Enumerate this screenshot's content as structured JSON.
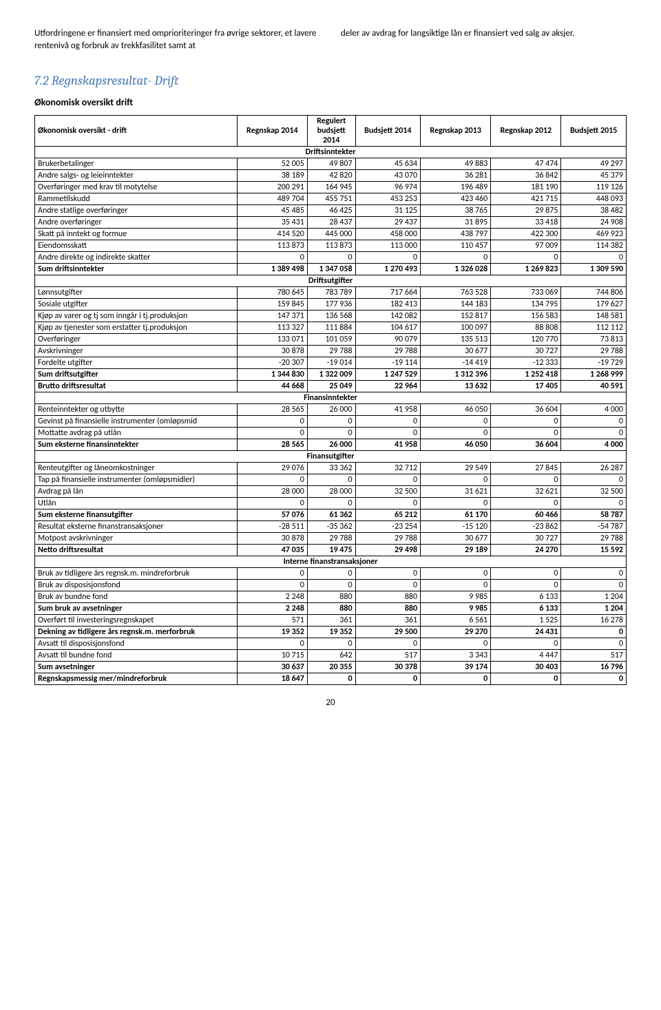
{
  "intro": {
    "left": "Utfordringene er finansiert med omprioriteringer fra øvrige sektorer, et lavere rentenivå og forbruk av trekkfasilitet samt at",
    "right": "deler av avdrag for langsiktige lån er finansiert ved salg av aksjer."
  },
  "section_title": "7.2 Regnskapsresultat- Drift",
  "subtitle": "Økonomisk oversikt drift",
  "page_number": "20",
  "headers": [
    "Økonomisk oversikt - drift",
    "Regnskap 2014",
    "Regulert budsjett 2014",
    "Budsjett 2014",
    "Regnskap 2013",
    "Regnskap 2012",
    "Budsjett 2015"
  ],
  "col_label": "Økonomisk oversikt - drift",
  "col_1": "Regnskap 2014",
  "col_2_a": "Regulert",
  "col_2_b": "budsjett",
  "col_2_c": "2014",
  "col_3": "Budsjett 2014",
  "col_4": "Regnskap 2013",
  "col_5": "Regnskap 2012",
  "col_6": "Budsjett 2015",
  "rows": [
    {
      "type": "section",
      "label": "Driftsinntekter"
    },
    {
      "type": "data",
      "label": "Brukerbetalinger",
      "v": [
        "52 005",
        "49 807",
        "45 634",
        "49 883",
        "47 474",
        "49 297"
      ]
    },
    {
      "type": "data",
      "label": "Andre salgs- og leieinntekter",
      "v": [
        "38 189",
        "42 820",
        "43 070",
        "36 281",
        "36 842",
        "45 379"
      ]
    },
    {
      "type": "data",
      "label": "Overføringer med krav til motytelse",
      "v": [
        "200 291",
        "164 945",
        "96 974",
        "196 489",
        "181 190",
        "119 126"
      ]
    },
    {
      "type": "data",
      "label": "Rammetilskudd",
      "v": [
        "489 704",
        "455 751",
        "453 253",
        "423 460",
        "421 715",
        "448 093"
      ]
    },
    {
      "type": "data",
      "label": "Andre statlige overføringer",
      "v": [
        "45 485",
        "46 425",
        "31 125",
        "38 765",
        "29 875",
        "38 482"
      ]
    },
    {
      "type": "data",
      "label": "Andre overføringer",
      "v": [
        "35 431",
        "28 437",
        "29 437",
        "31 895",
        "33 418",
        "24 908"
      ]
    },
    {
      "type": "data",
      "label": "Skatt på inntekt og formue",
      "v": [
        "414 520",
        "445 000",
        "458 000",
        "438 797",
        "422 300",
        "469 923"
      ]
    },
    {
      "type": "data",
      "label": "Eiendomsskatt",
      "v": [
        "113 873",
        "113 873",
        "113 000",
        "110 457",
        "97 009",
        "114 382"
      ]
    },
    {
      "type": "data",
      "label": "Andre direkte og indirekte skatter",
      "v": [
        "0",
        "0",
        "0",
        "0",
        "0",
        "0"
      ]
    },
    {
      "type": "bold",
      "label": "Sum driftsinntekter",
      "v": [
        "1 389 498",
        "1 347 058",
        "1 270 493",
        "1 326 028",
        "1 269 823",
        "1 309 590"
      ]
    },
    {
      "type": "section",
      "label": "Driftsutgifter"
    },
    {
      "type": "data",
      "label": "Lønnsutgifter",
      "v": [
        "780 645",
        "783 789",
        "717 664",
        "763 528",
        "733 069",
        "744 806"
      ]
    },
    {
      "type": "data",
      "label": "Sosiale utgifter",
      "v": [
        "159 845",
        "177 936",
        "182 413",
        "144 183",
        "134 795",
        "179 627"
      ]
    },
    {
      "type": "data",
      "label": "Kjøp av varer og tj som inngår i tj.produksjon",
      "v": [
        "147 371",
        "136 568",
        "142 082",
        "152 817",
        "156 583",
        "148 581"
      ]
    },
    {
      "type": "data",
      "label": "Kjøp av tjenester som erstatter tj.produksjon",
      "v": [
        "113 327",
        "111 884",
        "104 617",
        "100 097",
        "88 808",
        "112 112"
      ]
    },
    {
      "type": "data",
      "label": "Overføringer",
      "v": [
        "133 071",
        "101 059",
        "90 079",
        "135 513",
        "120 770",
        "73 813"
      ]
    },
    {
      "type": "data",
      "label": "Avskrivninger",
      "v": [
        "30 878",
        "29 788",
        "29 788",
        "30 677",
        "30 727",
        "29 788"
      ]
    },
    {
      "type": "data",
      "label": "Fordelte utgifter",
      "v": [
        "-20 307",
        "-19 014",
        "-19 114",
        "-14 419",
        "-12 333",
        "-19 729"
      ]
    },
    {
      "type": "bold",
      "label": "Sum driftsutgifter",
      "v": [
        "1 344 830",
        "1 322 009",
        "1 247 529",
        "1 312 396",
        "1 252 418",
        "1 268 999"
      ]
    },
    {
      "type": "bold",
      "label": "Brutto driftsresultat",
      "v": [
        "44 668",
        "25 049",
        "22 964",
        "13 632",
        "17 405",
        "40 591"
      ]
    },
    {
      "type": "section",
      "label": "Finansinntekter"
    },
    {
      "type": "data",
      "label": "Renteinntekter og utbytte",
      "v": [
        "28 565",
        "26 000",
        "41 958",
        "46 050",
        "36 604",
        "4 000"
      ]
    },
    {
      "type": "data",
      "label": "Gevinst på finansielle instrumenter (omløpsmid",
      "v": [
        "0",
        "0",
        "0",
        "0",
        "0",
        "0"
      ]
    },
    {
      "type": "data",
      "label": "Mottatte avdrag på utlån",
      "v": [
        "0",
        "0",
        "0",
        "0",
        "0",
        "0"
      ]
    },
    {
      "type": "bold",
      "label": "Sum eksterne finansinntekter",
      "v": [
        "28 565",
        "26 000",
        "41 958",
        "46 050",
        "36 604",
        "4 000"
      ]
    },
    {
      "type": "section",
      "label": "Finansutgifter"
    },
    {
      "type": "data",
      "label": "Renteutgifter og låneomkostninger",
      "v": [
        "29 076",
        "33 362",
        "32 712",
        "29 549",
        "27 845",
        "26 287"
      ]
    },
    {
      "type": "data",
      "label": "Tap på finansielle instrumenter (omløpsmidler)",
      "v": [
        "0",
        "0",
        "0",
        "0",
        "0",
        "0"
      ]
    },
    {
      "type": "data",
      "label": "Avdrag på lån",
      "v": [
        "28 000",
        "28 000",
        "32 500",
        "31 621",
        "32 621",
        "32 500"
      ]
    },
    {
      "type": "data",
      "label": "Utlån",
      "v": [
        "0",
        "0",
        "0",
        "0",
        "0",
        "0"
      ]
    },
    {
      "type": "bold",
      "label": "Sum eksterne finansutgifter",
      "v": [
        "57 076",
        "61 362",
        "65 212",
        "61 170",
        "60 466",
        "58 787"
      ]
    },
    {
      "type": "data",
      "label": "Resultat eksterne finanstransaksjoner",
      "v": [
        "-28 511",
        "-35 362",
        "-23 254",
        "-15 120",
        "-23 862",
        "-54 787"
      ]
    },
    {
      "type": "data",
      "label": "Motpost avskrivninger",
      "v": [
        "30 878",
        "29 788",
        "29 788",
        "30 677",
        "30 727",
        "29 788"
      ]
    },
    {
      "type": "bold",
      "label": "Netto driftsresultat",
      "v": [
        "47 035",
        "19 475",
        "29 498",
        "29 189",
        "24 270",
        "15 592"
      ]
    },
    {
      "type": "section",
      "label": "Interne finanstransaksjoner"
    },
    {
      "type": "data",
      "label": "Bruk av tidligere års regnsk.m. mindreforbruk",
      "v": [
        "0",
        "0",
        "0",
        "0",
        "0",
        "0"
      ]
    },
    {
      "type": "data",
      "label": "Bruk av disposisjonsfond",
      "v": [
        "0",
        "0",
        "0",
        "0",
        "0",
        "0"
      ]
    },
    {
      "type": "data",
      "label": "Bruk av bundne fond",
      "v": [
        "2 248",
        "880",
        "880",
        "9 985",
        "6 133",
        "1 204"
      ]
    },
    {
      "type": "bold",
      "label": "Sum bruk av avsetninger",
      "v": [
        "2 248",
        "880",
        "880",
        "9 985",
        "6 133",
        "1 204"
      ]
    },
    {
      "type": "data",
      "label": "Overført til investeringsregnskapet",
      "v": [
        "571",
        "361",
        "361",
        "6 561",
        "1 525",
        "16 278"
      ]
    },
    {
      "type": "bold",
      "label": "Dekning av tidligere års regnsk.m. merforbruk",
      "v": [
        "19 352",
        "19 352",
        "29 500",
        "29 270",
        "24 431",
        "0"
      ]
    },
    {
      "type": "data",
      "label": "Avsatt til disposisjonsfond",
      "v": [
        "0",
        "0",
        "0",
        "0",
        "0",
        "0"
      ]
    },
    {
      "type": "data",
      "label": "Avsatt til bundne fond",
      "v": [
        "10 715",
        "642",
        "517",
        "3 343",
        "4 447",
        "517"
      ]
    },
    {
      "type": "bold",
      "label": "Sum avsetninger",
      "v": [
        "30 637",
        "20 355",
        "30 378",
        "39 174",
        "30 403",
        "16 796"
      ]
    },
    {
      "type": "bold",
      "label": "Regnskapsmessig mer/mindreforbruk",
      "v": [
        "18 647",
        "0",
        "0",
        "0",
        "0",
        "0"
      ]
    }
  ]
}
